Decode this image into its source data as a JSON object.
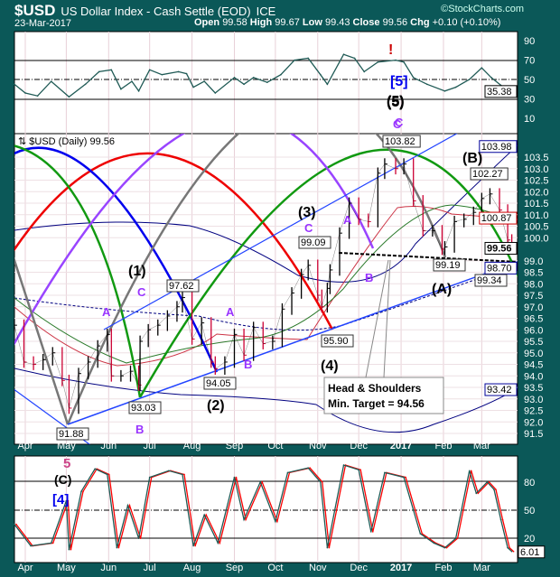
{
  "header": {
    "symbol": "$USD",
    "name": "US Dollar Index - Cash Settle (EOD)",
    "exchange": "ICE",
    "date": "23-Mar-2017",
    "watermark": "©StockCharts.com",
    "open_label": "Open",
    "open": "99.58",
    "high_label": "High",
    "high": "99.67",
    "low_label": "Low",
    "low": "99.43",
    "close_label": "Close",
    "close": "99.56",
    "chg_label": "Chg",
    "chg": "+0.10 (+0.10%)"
  },
  "colors": {
    "frame": "#0b5858",
    "up_bar": "#000000",
    "down_bar": "#cc0033",
    "rsi_line": "#1f5a55",
    "stoch_fast": "#1f5a55",
    "stoch_slow": "#ff0000"
  },
  "chart_data": [
    {
      "type": "line",
      "title": "",
      "ylim": [
        0,
        100
      ],
      "yticks": [
        "90",
        "70",
        "50",
        "30",
        "10"
      ],
      "last_value": "35.38",
      "annotations": [
        "[5]",
        "(5)",
        "C"
      ],
      "series": [
        {
          "x": [
            "2016-03-24",
            "2016-04-01",
            "2016-04-10",
            "2016-04-20",
            "2016-05-03",
            "2016-05-15",
            "2016-05-25",
            "2016-06-03",
            "2016-06-10",
            "2016-06-18",
            "2016-06-23",
            "2016-07-01",
            "2016-07-10",
            "2016-07-22",
            "2016-07-28",
            "2016-08-02",
            "2016-08-10",
            "2016-08-18",
            "2016-09-01",
            "2016-09-08",
            "2016-09-15",
            "2016-09-25",
            "2016-10-05",
            "2016-10-15",
            "2016-10-25",
            "2016-11-03",
            "2016-11-08",
            "2016-11-20",
            "2016-11-28",
            "2016-12-05",
            "2016-12-15",
            "2016-12-28",
            "2017-01-03",
            "2017-01-10",
            "2017-01-20",
            "2017-02-02",
            "2017-02-10",
            "2017-02-20",
            "2017-03-01",
            "2017-03-08",
            "2017-03-15",
            "2017-03-23"
          ],
          "values": [
            45,
            36,
            33,
            48,
            32,
            45,
            58,
            60,
            40,
            48,
            38,
            60,
            55,
            58,
            56,
            42,
            48,
            36,
            52,
            45,
            52,
            47,
            55,
            70,
            72,
            55,
            45,
            76,
            72,
            58,
            68,
            70,
            68,
            52,
            45,
            38,
            42,
            50,
            62,
            52,
            44,
            35.38
          ]
        }
      ]
    },
    {
      "type": "line",
      "title": "$USD (Daily) 99.56",
      "ylim": [
        91.2,
        104.5
      ],
      "yticks": [
        "103.5",
        "103.0",
        "102.5",
        "102.0",
        "101.5",
        "101.0",
        "100.5",
        "100.0",
        "99.0",
        "98.5",
        "98.0",
        "97.5",
        "97.0",
        "96.5",
        "96.0",
        "95.5",
        "95.0",
        "94.5",
        "94.0",
        "93.5",
        "93.0",
        "92.5",
        "92.0",
        "91.5"
      ],
      "price_tags": [
        {
          "value": "103.98",
          "color": "#000099"
        },
        {
          "value": "100.87",
          "color": "#cc0000"
        },
        {
          "value": "99.56",
          "color": "#000000"
        },
        {
          "value": "98.70",
          "color": "#000099"
        },
        {
          "value": "93.42",
          "color": "#000099"
        }
      ],
      "point_labels": [
        "91.88",
        "93.03",
        "97.62",
        "94.05",
        "99.09",
        "95.90",
        "103.82",
        "99.19",
        "102.27",
        "99.34"
      ],
      "wave_labels": [
        "(1)",
        "(2)",
        "(3)",
        "(4)",
        "(5)",
        "(A)",
        "(B)",
        "A",
        "B",
        "C",
        "A",
        "B",
        "C",
        "A",
        "B",
        "C",
        "5",
        "(C)",
        "[4]"
      ],
      "callout": {
        "line1": "Head & Shoulders",
        "line2": "Min. Target = 94.56"
      },
      "series": [
        {
          "x": [
            "2016-03-24",
            "2016-03-31",
            "2016-04-07",
            "2016-04-14",
            "2016-04-21",
            "2016-04-28",
            "2016-05-03",
            "2016-05-10",
            "2016-05-17",
            "2016-05-24",
            "2016-05-31",
            "2016-06-03",
            "2016-06-10",
            "2016-06-17",
            "2016-06-23",
            "2016-06-24",
            "2016-06-30",
            "2016-07-07",
            "2016-07-14",
            "2016-07-21",
            "2016-07-25",
            "2016-08-01",
            "2016-08-08",
            "2016-08-15",
            "2016-08-18",
            "2016-08-25",
            "2016-09-01",
            "2016-09-08",
            "2016-09-15",
            "2016-09-22",
            "2016-09-29",
            "2016-10-06",
            "2016-10-13",
            "2016-10-20",
            "2016-10-25",
            "2016-11-01",
            "2016-11-04",
            "2016-11-08",
            "2016-11-10",
            "2016-11-17",
            "2016-11-24",
            "2016-12-01",
            "2016-12-08",
            "2016-12-15",
            "2016-12-20",
            "2016-12-28",
            "2017-01-03",
            "2017-01-10",
            "2017-01-17",
            "2017-01-24",
            "2017-01-31",
            "2017-02-02",
            "2017-02-09",
            "2017-02-16",
            "2017-02-23",
            "2017-03-01",
            "2017-03-07",
            "2017-03-14",
            "2017-03-20",
            "2017-03-23"
          ],
          "values": [
            96.2,
            94.6,
            94.5,
            94.7,
            95.0,
            93.8,
            92.6,
            94.1,
            94.6,
            95.3,
            95.8,
            94.0,
            94.0,
            94.2,
            93.6,
            95.5,
            96.0,
            96.2,
            96.6,
            97.0,
            97.4,
            95.6,
            96.3,
            94.6,
            94.3,
            94.6,
            95.8,
            94.9,
            96.1,
            95.4,
            95.5,
            96.9,
            97.6,
            98.4,
            98.8,
            97.5,
            97.0,
            97.8,
            98.6,
            100.2,
            101.5,
            100.8,
            100.7,
            102.8,
            103.2,
            103.0,
            103.2,
            101.6,
            100.3,
            100.3,
            99.5,
            99.6,
            100.7,
            100.8,
            101.1,
            101.7,
            101.9,
            101.2,
            99.9,
            99.56
          ]
        }
      ]
    },
    {
      "type": "line",
      "title": "",
      "ylim": [
        0,
        100
      ],
      "yticks": [
        "80",
        "50",
        "20"
      ],
      "last_value": "6.01",
      "xticks": [
        "Apr",
        "May",
        "Jun",
        "Jul",
        "Aug",
        "Sep",
        "Oct",
        "Nov",
        "Dec",
        "2017",
        "Feb",
        "Mar"
      ],
      "series": [
        {
          "x": [
            "2016-03-24",
            "2016-04-05",
            "2016-04-20",
            "2016-05-01",
            "2016-05-03",
            "2016-05-12",
            "2016-05-22",
            "2016-05-31",
            "2016-06-07",
            "2016-06-15",
            "2016-06-23",
            "2016-07-01",
            "2016-07-15",
            "2016-07-25",
            "2016-08-02",
            "2016-08-10",
            "2016-08-20",
            "2016-09-01",
            "2016-09-08",
            "2016-09-20",
            "2016-10-01",
            "2016-10-10",
            "2016-10-25",
            "2016-11-03",
            "2016-11-08",
            "2016-11-20",
            "2016-12-01",
            "2016-12-10",
            "2016-12-20",
            "2017-01-03",
            "2017-01-15",
            "2017-01-25",
            "2017-02-02",
            "2017-02-10",
            "2017-02-20",
            "2017-02-25",
            "2017-03-05",
            "2017-03-10",
            "2017-03-15",
            "2017-03-20",
            "2017-03-23"
          ],
          "values": [
            35,
            12,
            15,
            60,
            8,
            70,
            94,
            88,
            10,
            55,
            20,
            85,
            92,
            88,
            12,
            45,
            15,
            85,
            40,
            80,
            38,
            90,
            95,
            80,
            10,
            98,
            93,
            27,
            90,
            85,
            25,
            15,
            10,
            20,
            92,
            68,
            80,
            72,
            40,
            10,
            6.01
          ]
        }
      ]
    }
  ]
}
